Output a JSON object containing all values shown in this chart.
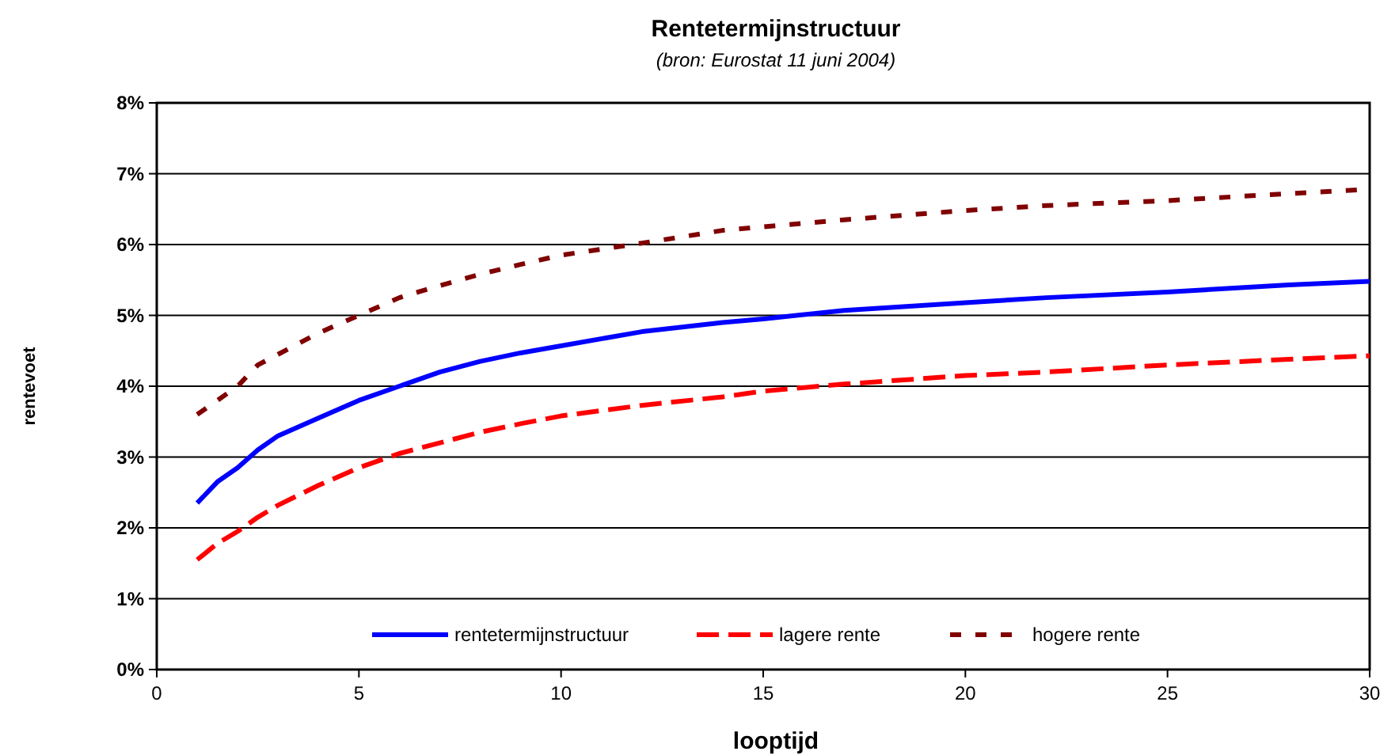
{
  "chart_data": {
    "type": "line",
    "title": "Rentetermijnstructuur",
    "subtitle": "(bron: Eurostat 11 juni 2004)",
    "xlabel": "looptijd",
    "ylabel": "rentevoet",
    "x": [
      1,
      1.5,
      2,
      2.5,
      3,
      4,
      5,
      6,
      7,
      8,
      9,
      10,
      12,
      14,
      15,
      17,
      20,
      22,
      25,
      28,
      30
    ],
    "series": [
      {
        "name": "rentetermijnstructuur",
        "color": "#0000ff",
        "line_style": "solid",
        "values": [
          2.35,
          2.65,
          2.85,
          3.1,
          3.3,
          3.55,
          3.8,
          4.0,
          4.2,
          4.35,
          4.47,
          4.57,
          4.77,
          4.9,
          4.95,
          5.07,
          5.18,
          5.25,
          5.33,
          5.43,
          5.48
        ]
      },
      {
        "name": "lagere rente",
        "color": "#ff0000",
        "line_style": "dashed",
        "values": [
          1.55,
          1.78,
          1.95,
          2.15,
          2.32,
          2.6,
          2.85,
          3.05,
          3.2,
          3.35,
          3.47,
          3.58,
          3.73,
          3.85,
          3.93,
          4.03,
          4.15,
          4.2,
          4.3,
          4.38,
          4.43
        ]
      },
      {
        "name": "hogere rente",
        "color": "#800000",
        "line_style": "dotted",
        "values": [
          3.6,
          3.8,
          4.0,
          4.3,
          4.45,
          4.75,
          5.0,
          5.25,
          5.42,
          5.58,
          5.72,
          5.85,
          6.02,
          6.2,
          6.25,
          6.35,
          6.48,
          6.55,
          6.62,
          6.72,
          6.78
        ]
      }
    ],
    "xlim": [
      0,
      30
    ],
    "xticks": [
      0,
      5,
      10,
      15,
      20,
      25,
      30
    ],
    "ylim": [
      0,
      8
    ],
    "yticks": [
      {
        "value": 0,
        "label": "0%"
      },
      {
        "value": 1,
        "label": "1%"
      },
      {
        "value": 2,
        "label": "2%"
      },
      {
        "value": 3,
        "label": "3%"
      },
      {
        "value": 4,
        "label": "4%"
      },
      {
        "value": 5,
        "label": "5%"
      },
      {
        "value": 6,
        "label": "6%"
      },
      {
        "value": 7,
        "label": "7%"
      },
      {
        "value": 8,
        "label": "8%"
      }
    ],
    "grid": "y",
    "legend": "bottom",
    "marker": "none"
  }
}
